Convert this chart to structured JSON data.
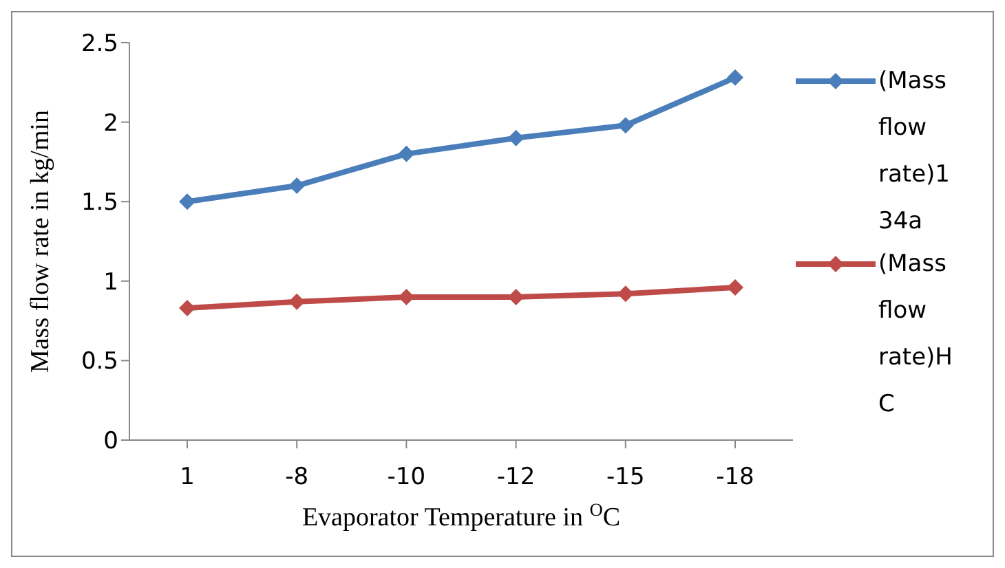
{
  "chart_data": {
    "type": "line",
    "xlabel": "Evaporator Temperature  in $^{O}$C",
    "ylabel": "Mass flow rate in kg/min",
    "categories": [
      "1",
      "-8",
      "-10",
      "-12",
      "-15",
      "-18"
    ],
    "series": [
      {
        "name": "(Mass flow rate)134a",
        "color": "#4a7ebb",
        "values": [
          1.5,
          1.6,
          1.8,
          1.9,
          1.98,
          2.28
        ]
      },
      {
        "name": "(Mass flow rate)HC",
        "color": "#be4b48",
        "values": [
          0.83,
          0.87,
          0.9,
          0.9,
          0.92,
          0.96
        ]
      }
    ],
    "ylim": [
      0,
      2.5
    ],
    "yticks": [
      0,
      0.5,
      1,
      1.5,
      2,
      2.5
    ],
    "grid": false,
    "legend": "right",
    "marker": "diamond",
    "line_style": "solid"
  }
}
